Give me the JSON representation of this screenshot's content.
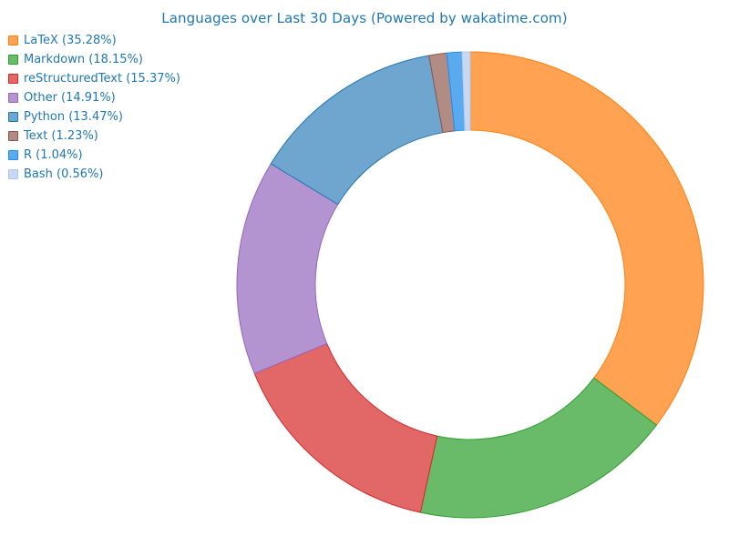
{
  "chart_data": {
    "type": "pie",
    "style": "donut",
    "title": "Languages over Last 30 Days (Powered by wakatime.com)",
    "legend_position": "top-left",
    "start_angle": "top, clockwise",
    "slices": [
      {
        "label": "LaTeX (35.28%)",
        "name": "LaTeX",
        "value": 35.28,
        "fill": "#FFA352",
        "stroke": "#FF7F0E"
      },
      {
        "label": "Markdown (18.15%)",
        "name": "Markdown",
        "value": 18.15,
        "fill": "#69BB69",
        "stroke": "#2CA02C"
      },
      {
        "label": "reStructuredText (15.37%)",
        "name": "reStructuredText",
        "value": 15.37,
        "fill": "#E26868",
        "stroke": "#D62728"
      },
      {
        "label": "Other (14.91%)",
        "name": "Other",
        "value": 14.91,
        "fill": "#B394D1",
        "stroke": "#9467BD"
      },
      {
        "label": "Python (13.47%)",
        "name": "Python",
        "value": 13.47,
        "fill": "#6FA6CF",
        "stroke": "#1F77B4"
      },
      {
        "label": "Text (1.23%)",
        "name": "Text",
        "value": 1.23,
        "fill": "#B08C85",
        "stroke": "#8C564B"
      },
      {
        "label": "R (1.04%)",
        "name": "R",
        "value": 1.04,
        "fill": "#5AAAF0",
        "stroke": "#1F90F0"
      },
      {
        "label": "Bash (0.56%)",
        "name": "Bash",
        "value": 0.56,
        "fill": "#C6D8F4",
        "stroke": "#AEC7E8"
      }
    ]
  }
}
